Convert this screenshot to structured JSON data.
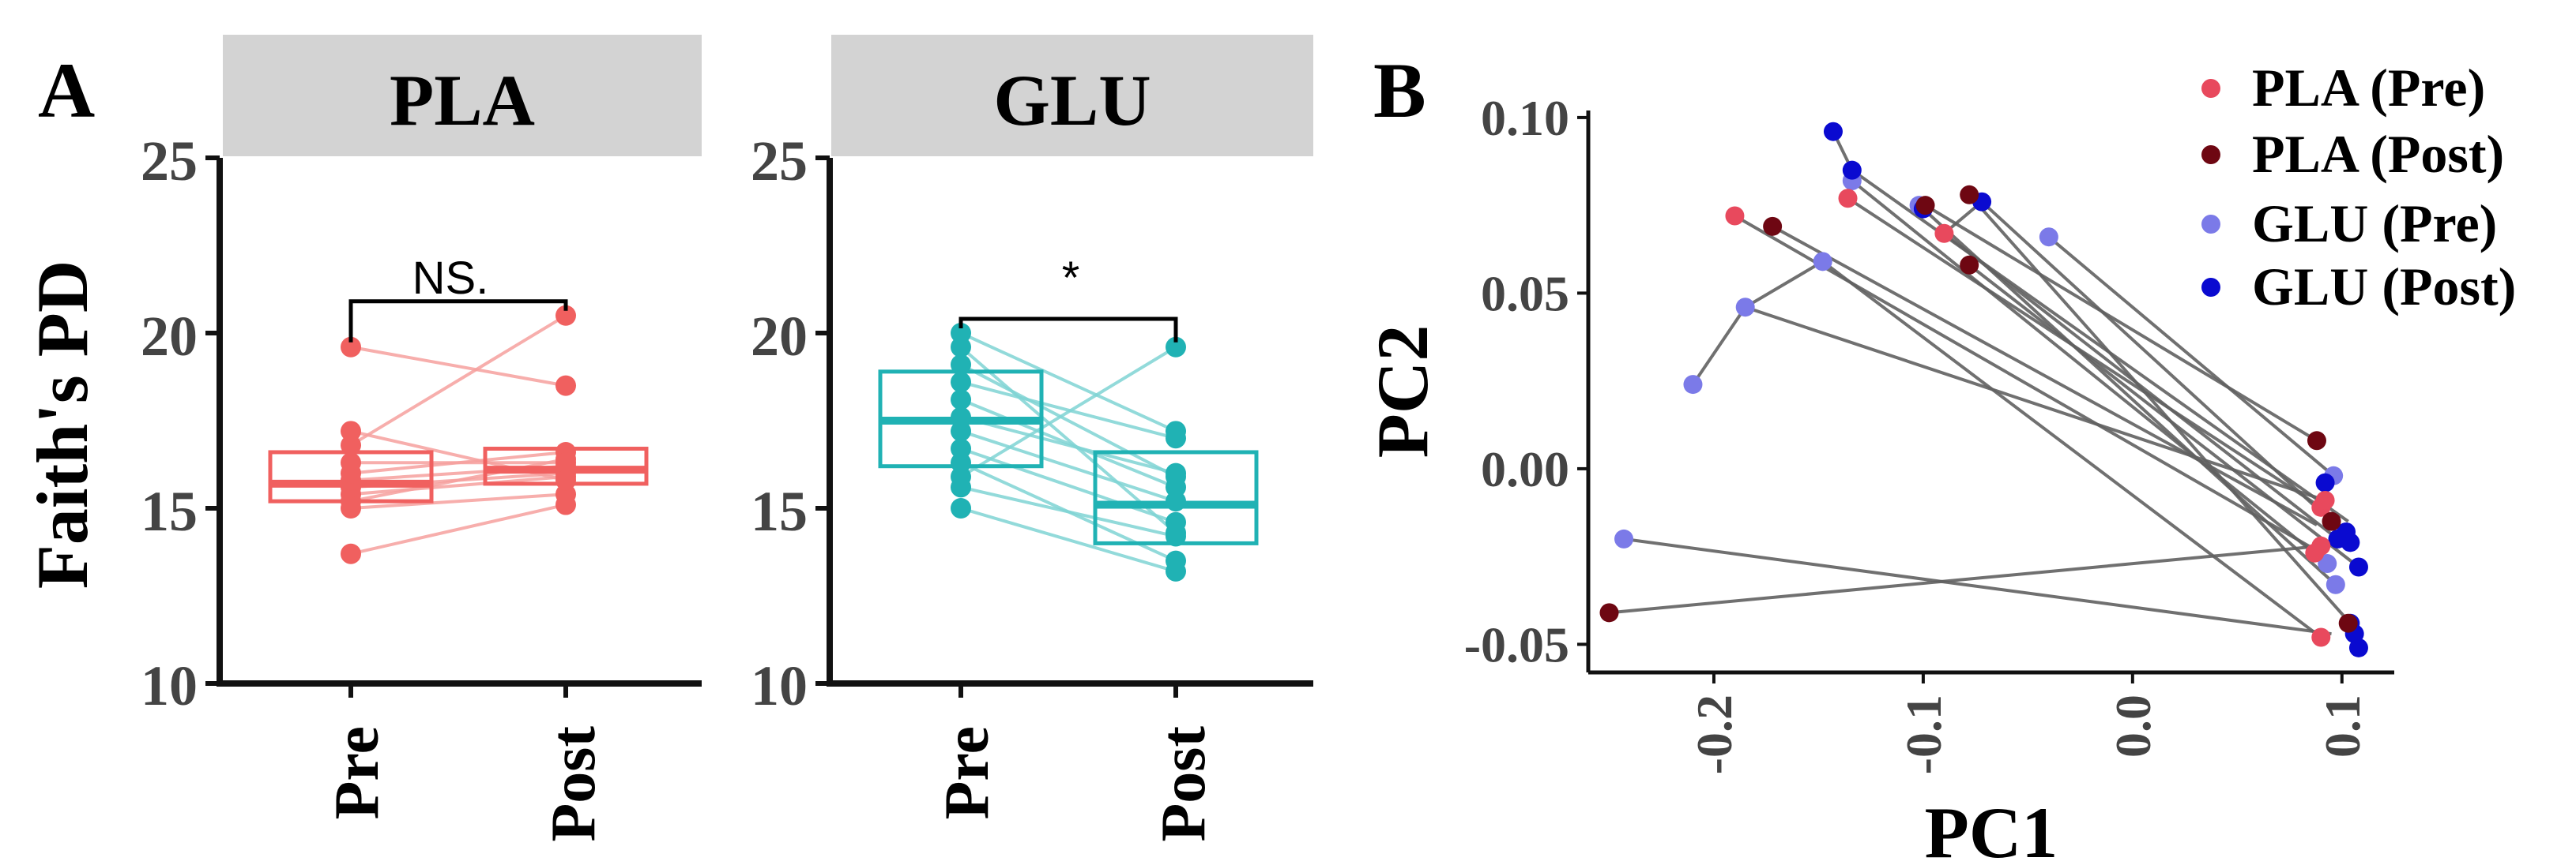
{
  "colors": {
    "pla": "#f0605f",
    "pla_light": "#f6a09e",
    "glu": "#20b2b4",
    "glu_light": "#7fd4d4",
    "strip_bg": "#d3d3d3",
    "axis": "#111111",
    "tick_text": "#444444",
    "pc_line": "#606060",
    "pla_pre": "#e8495d",
    "pla_post": "#6e0712",
    "glu_pre": "#7b7ae8",
    "glu_post": "#0a0ad0"
  },
  "panel_a": {
    "label": "A",
    "ylabel": "Faith's PD",
    "chart_data": {
      "type": "boxplot-paired",
      "ylim": [
        10,
        25
      ],
      "yticks": [
        "10",
        "15",
        "20",
        "25"
      ],
      "categories": [
        "Pre",
        "Post"
      ],
      "facets": [
        {
          "name": "PLA",
          "color_key": "pla",
          "box": {
            "Pre": {
              "q1": 15.2,
              "median": 15.7,
              "q3": 16.6
            },
            "Post": {
              "q1": 15.7,
              "median": 16.1,
              "q3": 16.7
            }
          },
          "pairs": [
            [
              13.7,
              15.1
            ],
            [
              15.0,
              15.4
            ],
            [
              15.2,
              16.4
            ],
            [
              15.4,
              15.9
            ],
            [
              15.6,
              16.0
            ],
            [
              15.8,
              16.2
            ],
            [
              16.0,
              16.6
            ],
            [
              16.3,
              16.3
            ],
            [
              16.8,
              20.5
            ],
            [
              17.2,
              15.8
            ],
            [
              19.6,
              18.5
            ]
          ],
          "significance": "NS."
        },
        {
          "name": "GLU",
          "color_key": "glu",
          "box": {
            "Pre": {
              "q1": 16.2,
              "median": 17.5,
              "q3": 18.9
            },
            "Post": {
              "q1": 14.0,
              "median": 15.1,
              "q3": 16.6
            }
          },
          "pairs": [
            [
              15.0,
              13.2
            ],
            [
              15.6,
              14.2
            ],
            [
              15.9,
              19.6
            ],
            [
              16.3,
              13.5
            ],
            [
              16.7,
              14.6
            ],
            [
              17.2,
              15.2
            ],
            [
              17.6,
              16.0
            ],
            [
              18.1,
              15.6
            ],
            [
              18.6,
              17.0
            ],
            [
              19.1,
              15.9
            ],
            [
              19.6,
              14.3
            ],
            [
              20.0,
              17.2
            ]
          ],
          "significance": "*"
        }
      ]
    }
  },
  "panel_b": {
    "label": "B",
    "chart_data": {
      "type": "scatter",
      "xlabel": "PC1",
      "ylabel": "PC2",
      "xlim": [
        -0.26,
        0.125
      ],
      "ylim": [
        -0.058,
        0.102
      ],
      "xticks": [
        -0.2,
        -0.1,
        0.0,
        0.1
      ],
      "xtick_labels": [
        "-0.2",
        "-0.1",
        "0.0",
        "0.1"
      ],
      "yticks": [
        0.1,
        0.05,
        0.0,
        -0.05
      ],
      "ytick_labels": [
        "0.10",
        "0.05",
        "0.00",
        "-0.05"
      ],
      "legend": [
        {
          "label": "PLA (Pre)",
          "color_key": "pla_pre"
        },
        {
          "label": "PLA (Post)",
          "color_key": "pla_post"
        },
        {
          "label": "GLU (Pre)",
          "color_key": "glu_pre"
        },
        {
          "label": "GLU (Post)",
          "color_key": "glu_post"
        }
      ],
      "segments": [
        [
          -0.25,
          -0.041,
          0.09,
          -0.022
        ],
        [
          -0.243,
          -0.02,
          0.095,
          -0.047
        ],
        [
          -0.21,
          0.024,
          -0.185,
          0.046
        ],
        [
          -0.185,
          0.046,
          -0.148,
          0.059
        ],
        [
          -0.19,
          0.072,
          0.09,
          -0.024
        ],
        [
          -0.172,
          0.069,
          0.088,
          -0.016
        ],
        [
          -0.185,
          0.046,
          0.092,
          -0.009
        ],
        [
          -0.148,
          0.059,
          0.09,
          -0.048
        ],
        [
          -0.143,
          0.096,
          -0.134,
          0.085
        ],
        [
          -0.134,
          0.085,
          0.103,
          -0.015
        ],
        [
          -0.136,
          0.077,
          0.09,
          -0.011
        ],
        [
          -0.134,
          0.082,
          0.093,
          -0.027
        ],
        [
          -0.1,
          0.074,
          0.097,
          -0.033
        ],
        [
          -0.099,
          0.075,
          0.088,
          0.008
        ],
        [
          -0.09,
          0.067,
          -0.072,
          0.076
        ],
        [
          -0.078,
          0.078,
          0.104,
          -0.044
        ],
        [
          -0.09,
          0.067,
          0.098,
          -0.02
        ],
        [
          -0.078,
          0.058,
          0.108,
          -0.028
        ],
        [
          -0.072,
          0.076,
          0.106,
          -0.021
        ],
        [
          -0.04,
          0.066,
          0.096,
          -0.002
        ]
      ],
      "points": [
        {
          "group": "glu_pre",
          "x": -0.243,
          "y": -0.02
        },
        {
          "group": "glu_pre",
          "x": -0.21,
          "y": 0.024
        },
        {
          "group": "glu_pre",
          "x": -0.185,
          "y": 0.046
        },
        {
          "group": "glu_pre",
          "x": -0.148,
          "y": 0.059
        },
        {
          "group": "glu_pre",
          "x": -0.134,
          "y": 0.082
        },
        {
          "group": "glu_pre",
          "x": -0.102,
          "y": 0.075
        },
        {
          "group": "glu_pre",
          "x": -0.04,
          "y": 0.066
        },
        {
          "group": "glu_pre",
          "x": 0.096,
          "y": -0.002
        },
        {
          "group": "glu_pre",
          "x": 0.097,
          "y": -0.033
        },
        {
          "group": "glu_pre",
          "x": 0.093,
          "y": -0.027
        },
        {
          "group": "glu_post",
          "x": -0.143,
          "y": 0.096
        },
        {
          "group": "glu_post",
          "x": -0.134,
          "y": 0.085
        },
        {
          "group": "glu_post",
          "x": -0.1,
          "y": 0.074
        },
        {
          "group": "glu_post",
          "x": -0.072,
          "y": 0.076
        },
        {
          "group": "glu_post",
          "x": 0.092,
          "y": -0.004
        },
        {
          "group": "glu_post",
          "x": 0.098,
          "y": -0.02
        },
        {
          "group": "glu_post",
          "x": 0.102,
          "y": -0.018
        },
        {
          "group": "glu_post",
          "x": 0.104,
          "y": -0.021
        },
        {
          "group": "glu_post",
          "x": 0.108,
          "y": -0.028
        },
        {
          "group": "glu_post",
          "x": 0.104,
          "y": -0.044
        },
        {
          "group": "glu_post",
          "x": 0.106,
          "y": -0.047
        },
        {
          "group": "glu_post",
          "x": 0.108,
          "y": -0.051
        },
        {
          "group": "pla_pre",
          "x": -0.19,
          "y": 0.072
        },
        {
          "group": "pla_pre",
          "x": -0.136,
          "y": 0.077
        },
        {
          "group": "pla_pre",
          "x": -0.09,
          "y": 0.067
        },
        {
          "group": "pla_pre",
          "x": 0.09,
          "y": -0.011
        },
        {
          "group": "pla_pre",
          "x": 0.092,
          "y": -0.009
        },
        {
          "group": "pla_pre",
          "x": 0.09,
          "y": -0.022
        },
        {
          "group": "pla_pre",
          "x": 0.087,
          "y": -0.024
        },
        {
          "group": "pla_pre",
          "x": 0.09,
          "y": -0.048
        },
        {
          "group": "pla_post",
          "x": -0.25,
          "y": -0.041
        },
        {
          "group": "pla_post",
          "x": -0.172,
          "y": 0.069
        },
        {
          "group": "pla_post",
          "x": -0.099,
          "y": 0.075
        },
        {
          "group": "pla_post",
          "x": -0.078,
          "y": 0.078
        },
        {
          "group": "pla_post",
          "x": -0.078,
          "y": 0.058
        },
        {
          "group": "pla_post",
          "x": 0.088,
          "y": 0.008
        },
        {
          "group": "pla_post",
          "x": 0.095,
          "y": -0.015
        },
        {
          "group": "pla_post",
          "x": 0.103,
          "y": -0.044
        }
      ]
    }
  }
}
